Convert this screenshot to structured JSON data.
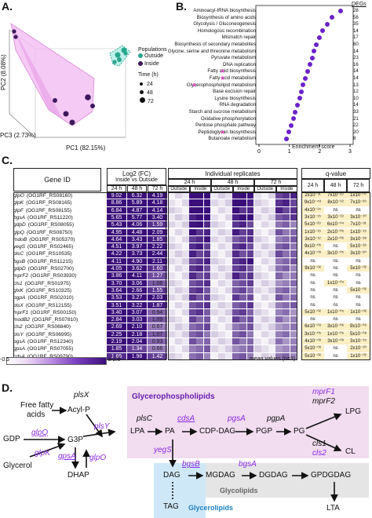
{
  "panelA": {
    "label": "A.",
    "axes": {
      "pc1": "PC1 (82.15%)",
      "pc2": "PC2 (8.08%)",
      "pc3": "PC3 (2.73%)"
    },
    "legend": {
      "populations_title": "Populations",
      "outside": "Outside",
      "inside": "Inside",
      "time_title": "Time (h)",
      "times": [
        "24",
        "48",
        "72"
      ]
    },
    "colors": {
      "outside": "#2aa58c",
      "inside": "#3d1a5e",
      "hull": "#e7a3e8"
    }
  },
  "panelB": {
    "label": "B.",
    "degs_header": "DEGs",
    "xaxis_label": "Enrichment score",
    "ticks": [
      "0",
      "1",
      "2",
      "3"
    ],
    "terms": [
      {
        "name": "Aminoacyl-tRNA biosynthesis",
        "degs": "28",
        "score": 2.7,
        "star": false
      },
      {
        "name": "Biosynthesis of amino acids",
        "degs": "56",
        "score": 2.4,
        "star": false
      },
      {
        "name": "Glycolysis / Gluconeogenesis",
        "degs": "35",
        "score": 2.25,
        "star": false
      },
      {
        "name": "Homologous recombination",
        "degs": "14",
        "score": 2.1,
        "star": false
      },
      {
        "name": "Mismatch repair",
        "degs": "17",
        "score": 2.0,
        "star": false
      },
      {
        "name": "Biosynthesis of secondary metabolites",
        "degs": "60",
        "score": 1.9,
        "star": false
      },
      {
        "name": "Glycine, serine and threonine metabolism",
        "degs": "14",
        "score": 1.82,
        "star": false
      },
      {
        "name": "Pyruvate metabolism",
        "degs": "23",
        "score": 1.75,
        "star": false
      },
      {
        "name": "DNA replication",
        "degs": "16",
        "score": 1.68,
        "star": false
      },
      {
        "name": "Fatty acid biosynthesis",
        "degs": "14",
        "score": 1.6,
        "star": true
      },
      {
        "name": "Fatty acid metabolism",
        "degs": "14",
        "score": 1.53,
        "star": true
      },
      {
        "name": "Glycerophospholipid metabolism",
        "degs": "13",
        "score": 1.46,
        "star": true
      },
      {
        "name": "Base excision repair",
        "degs": "12",
        "score": 1.4,
        "star": false
      },
      {
        "name": "Lysine biosynthesis",
        "degs": "10",
        "score": 1.34,
        "star": false
      },
      {
        "name": "RNA degradation",
        "degs": "14",
        "score": 1.27,
        "star": false
      },
      {
        "name": "Starch and sucrose metabolism",
        "degs": "33",
        "score": 1.2,
        "star": false
      },
      {
        "name": "Oxidative phosphorylation",
        "degs": "21",
        "score": 1.13,
        "star": false
      },
      {
        "name": "Pentose phosphate pathway",
        "degs": "22",
        "score": 1.06,
        "star": false
      },
      {
        "name": "Peptidoglycan biosynthesis",
        "degs": "20",
        "score": 0.98,
        "star": true
      },
      {
        "name": "Butanoate metabolism",
        "degs": "8",
        "score": 0.9,
        "star": false
      }
    ]
  },
  "panelC": {
    "label": "C.",
    "headers": {
      "gene_id": "Gene ID",
      "log2fc": "Log2 (FC)",
      "inside_vs_outside": "Inside vs Outside",
      "individual": "Individual replicates",
      "qvalue": "q-value",
      "times": [
        "24 h",
        "48 h",
        "72 h"
      ],
      "outside": "Outside",
      "inside": "Inside"
    },
    "scale": {
      "low": "-0.5",
      "high": "≥ 2.0"
    },
    "mean_note": "mean values (n=3)",
    "genes": [
      {
        "name": "glpO",
        "id": "(OG1RF_RS08160)",
        "fc": [
          "9.02",
          "6.32",
          "4.19"
        ],
        "q": [
          "2x10⁻³¹",
          "7x10⁻²⁹",
          "1x10⁻⁰⁷"
        ]
      },
      {
        "name": "glpK",
        "id": "(OG1RF_RS08165)",
        "fc": [
          "8.86",
          "5.89",
          "4.18"
        ],
        "q": [
          "9x10⁻⁴⁸",
          "8x10⁻¹²",
          "7x10⁻²⁹"
        ]
      },
      {
        "name": "glpF",
        "id": "(OG1RF_RS08155)",
        "fc": [
          "6.84",
          "4.87",
          "4.14"
        ],
        "q": [
          "4x10⁻¹⁴",
          "ns",
          "ns"
        ]
      },
      {
        "name": "bgsA",
        "id": "(OG1RF_RS11220)",
        "fc": [
          "5.65",
          "5.77",
          "3.40"
        ],
        "q": [
          "3x10⁻¹⁵",
          "3x10⁻¹³",
          "3x10⁻¹⁰"
        ]
      },
      {
        "name": "gdpD",
        "id": "(OG1RF_RS08055)",
        "fc": [
          "5.43",
          "4.06",
          "1.59"
        ],
        "q": [
          "5x10⁻²⁹",
          "6x10⁻⁰⁴",
          "7x10⁻³¹"
        ]
      },
      {
        "name": "glpQ",
        "id": "(OG1RF_RS08750)",
        "fc": [
          "4.95",
          "4.48",
          "2.09"
        ],
        "q": [
          "1x10⁻¹⁵",
          "2x10⁻⁰⁵",
          "1x10⁻¹⁵"
        ]
      },
      {
        "name": "mdoB",
        "id": "(OG1RF_RS05370)",
        "fc": [
          "4.64",
          "3.43",
          "1.85"
        ],
        "q": [
          "3x10⁻¹²",
          "2x10⁻⁰⁶",
          "3x10⁻³⁸"
        ]
      },
      {
        "name": "yegS",
        "id": "(OG1RF_RS02465)",
        "fc": [
          "4.51",
          "3.97",
          "2.22"
        ],
        "q": [
          "9x10⁻⁰⁶",
          "ns",
          "5x10⁻²⁶"
        ]
      },
      {
        "name": "plsC",
        "id": "(OG1RF_RS10535)",
        "fc": [
          "4.22",
          "3.73",
          "2.44"
        ],
        "q": [
          "4x10⁻⁰³",
          "3x10⁻⁰⁵",
          "3x10⁻²⁰"
        ]
      },
      {
        "name": "bgsB",
        "id": "(OG1RF_RS11215)",
        "fc": [
          "4.11",
          "4.90",
          "2.11"
        ],
        "q": [
          "ns",
          "ns",
          "ns"
        ]
      },
      {
        "name": "gdpD",
        "id": "(OG1RF_RS02700)",
        "fc": [
          "4.05",
          "3.62",
          "1.60"
        ],
        "q": [
          "9x10⁻⁰²",
          "ns",
          "5x10⁻⁰²"
        ]
      },
      {
        "name": "mprF2",
        "id": "(OG1RF_RS03930)",
        "fc": [
          "3.86",
          "4.11",
          "1.27"
        ],
        "q": [
          "ns",
          "ns",
          "ns"
        ]
      },
      {
        "name": "cls1",
        "id": "(OG1RF_RS01975)",
        "fc": [
          "3.70",
          "3.06",
          "1.06"
        ],
        "q": [
          "ns",
          "1x10⁻⁰⁴",
          "ns"
        ]
      },
      {
        "name": "glxK",
        "id": "(OG1RF_RS10325)",
        "fc": [
          "3.64",
          "2.66",
          "1.55"
        ],
        "q": [
          "ns",
          "ns",
          "5x10⁻⁰²"
        ]
      },
      {
        "name": "pgpA",
        "id": "(OG1RF_RS02010)",
        "fc": [
          "3.53",
          "3.27",
          "2.03"
        ],
        "q": [
          "ns",
          "ns",
          "ns"
        ]
      },
      {
        "name": "plsX",
        "id": "(OG1RF_RS12155)",
        "fc": [
          "3.51",
          "3.22",
          "1.87"
        ],
        "q": [
          "ns",
          "ns",
          "ns"
        ]
      },
      {
        "name": "mprF1",
        "id": "(OG1RF_RS00150)",
        "fc": [
          "3.40",
          "3.07",
          "0.94"
        ],
        "q": [
          "5x10⁻⁰²",
          "1x10⁻⁰⁵",
          "1x10⁻⁰²"
        ]
      },
      {
        "name": "modB2",
        "id": "(OG1RF_RS07810)",
        "fc": [
          "2.84",
          "3.03",
          "1.09"
        ],
        "q": [
          "ns",
          "ns",
          "ns"
        ]
      },
      {
        "name": "cls2",
        "id": "(OG1RF_RS06840)",
        "fc": [
          "2.69",
          "2.10",
          "0.67"
        ],
        "q": [
          "6x10⁻⁰³",
          "3x10⁻⁰⁶",
          "9x10⁻⁰⁹"
        ]
      },
      {
        "name": "plsY",
        "id": "(OG1RF_RS06995)",
        "fc": [
          "2.25",
          "2.18",
          "1.07"
        ],
        "q": [
          "3x10⁻⁰⁵",
          "1x10⁻⁰⁵",
          "5x10⁻⁰⁸"
        ]
      },
      {
        "name": "pgsA",
        "id": "(OG1RF_RS12340)",
        "fc": [
          "2.19",
          "2.04",
          "0.93"
        ],
        "q": [
          "4x10⁻⁰³",
          "3x10⁻⁰³",
          "3x10⁻¹⁵"
        ]
      },
      {
        "name": "gpsA",
        "id": "(OG1RF_RS07055)",
        "fc": [
          "1.85",
          "1.34",
          "0.66"
        ],
        "q": [
          "5x10⁻⁰³",
          "ns",
          "2x10⁻¹⁰"
        ]
      },
      {
        "name": "cdsA",
        "id": "(OG1RF_RS09790)",
        "fc": [
          "1.65",
          "1.98",
          "1.42"
        ],
        "q": [
          "5x10⁻⁰²",
          "ns",
          "1x10⁻⁰²"
        ]
      }
    ]
  },
  "panelD": {
    "label": "D.",
    "nodes": {
      "ffa1": "Free fatty",
      "ffa2": "acids",
      "acylp": "Acyl-P",
      "gdp": "GDP",
      "g3p": "G3P",
      "glycerol": "Glycerol",
      "dhap": "DHAP",
      "lpa": "LPA",
      "pa": "PA",
      "cdpdag": "CDP-DAG",
      "pgp": "PGP",
      "pg": "PG",
      "lpg": "LPG",
      "cl": "CL",
      "dag": "DAG",
      "mgdag": "MGDAG",
      "dgdag": "DGDAG",
      "gpdgdag": "GPDGDAG",
      "tag": "TAG",
      "lta": "LTA"
    },
    "enzymes": {
      "plsx": "plsX",
      "glpq": "glpQ",
      "glpk": "glpK",
      "plsy": "plsY",
      "gpsa": "gpsA",
      "glpo": "glpO",
      "plsc": "plsC",
      "cdsa": "cdsA",
      "pgsa": "pgsA",
      "pgpa": "pgpA",
      "mprf1": "mprF1",
      "mprf2": "mprF2",
      "cls1": "cls1",
      "cls2": "cls2",
      "yegs": "yegS",
      "bgsb": "bgsB",
      "bgsa": "bgsA"
    },
    "regions": {
      "glycerophospholipids": "Glycerophospholipids",
      "glycolipids": "Glycolipids",
      "glycerolipids": "Glycerolipids"
    }
  }
}
